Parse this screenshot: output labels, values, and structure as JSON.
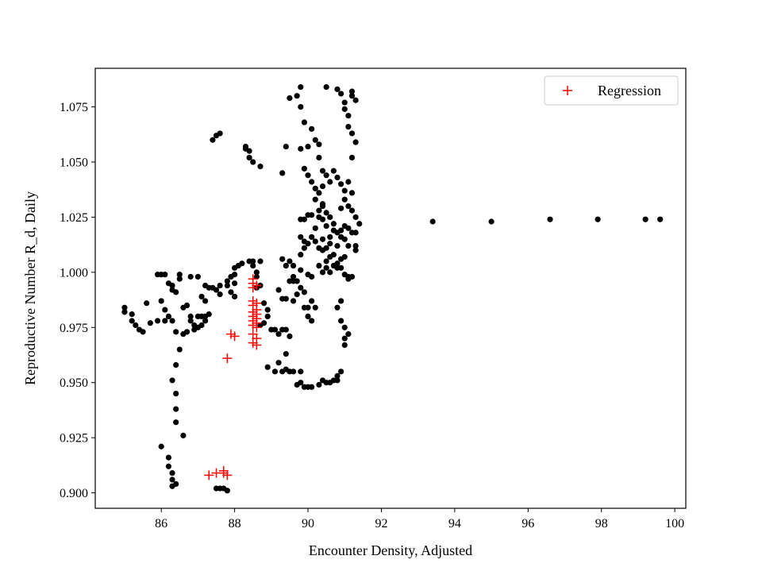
{
  "chart_data": {
    "type": "scatter",
    "title": "",
    "xlabel": "Encounter Density, Adjusted",
    "ylabel": "Reproductive Number R_d, Daily",
    "xlim": [
      84.2,
      100.3
    ],
    "ylim": [
      0.893,
      1.0925
    ],
    "xticks": [
      86,
      88,
      90,
      92,
      94,
      96,
      98,
      100
    ],
    "xtick_labels": [
      "86",
      "88",
      "90",
      "92",
      "94",
      "96",
      "98",
      "100"
    ],
    "yticks": [
      0.9,
      0.925,
      0.95,
      0.975,
      1.0,
      1.025,
      1.05,
      1.075
    ],
    "ytick_labels": [
      "0.900",
      "0.925",
      "0.950",
      "0.975",
      "1.000",
      "1.025",
      "1.050",
      "1.075"
    ],
    "grid": false,
    "legend": {
      "position": "top-right",
      "entries": [
        "Regression"
      ]
    },
    "series": [
      {
        "marker": "dot",
        "color": "#000000",
        "points": [
          [
            85.0,
            0.984
          ],
          [
            85.0,
            0.982
          ],
          [
            85.2,
            0.981
          ],
          [
            85.2,
            0.978
          ],
          [
            85.3,
            0.976
          ],
          [
            85.4,
            0.974
          ],
          [
            85.5,
            0.973
          ],
          [
            85.6,
            0.986
          ],
          [
            85.7,
            0.977
          ],
          [
            85.9,
            0.978
          ],
          [
            86.0,
            0.999
          ],
          [
            86.1,
            0.999
          ],
          [
            85.9,
            0.999
          ],
          [
            86.0,
            0.987
          ],
          [
            86.1,
            0.983
          ],
          [
            86.2,
            0.98
          ],
          [
            86.1,
            0.978
          ],
          [
            86.3,
            0.978
          ],
          [
            86.2,
            0.995
          ],
          [
            86.3,
            0.994
          ],
          [
            86.3,
            0.992
          ],
          [
            86.4,
            0.991
          ],
          [
            86.5,
            0.997
          ],
          [
            86.5,
            0.999
          ],
          [
            86.4,
            0.973
          ],
          [
            86.5,
            0.965
          ],
          [
            86.4,
            0.958
          ],
          [
            86.3,
            0.951
          ],
          [
            86.4,
            0.945
          ],
          [
            86.4,
            0.938
          ],
          [
            86.4,
            0.932
          ],
          [
            86.6,
            0.926
          ],
          [
            86.0,
            0.921
          ],
          [
            86.2,
            0.916
          ],
          [
            86.2,
            0.912
          ],
          [
            86.3,
            0.909
          ],
          [
            86.3,
            0.906
          ],
          [
            86.4,
            0.904
          ],
          [
            86.3,
            0.903
          ],
          [
            86.6,
            0.972
          ],
          [
            86.7,
            0.973
          ],
          [
            86.6,
            0.984
          ],
          [
            86.7,
            0.985
          ],
          [
            86.8,
            0.98
          ],
          [
            86.8,
            0.978
          ],
          [
            86.9,
            0.976
          ],
          [
            86.9,
            0.974
          ],
          [
            87.0,
            0.975
          ],
          [
            87.0,
            0.98
          ],
          [
            87.1,
            0.98
          ],
          [
            87.2,
            0.978
          ],
          [
            87.1,
            0.976
          ],
          [
            87.2,
            0.98
          ],
          [
            87.3,
            0.981
          ],
          [
            87.2,
            0.987
          ],
          [
            87.1,
            0.989
          ],
          [
            87.0,
            0.998
          ],
          [
            86.8,
            0.998
          ],
          [
            87.2,
            0.994
          ],
          [
            87.3,
            0.993
          ],
          [
            87.4,
            0.993
          ],
          [
            87.5,
            0.992
          ],
          [
            87.6,
            0.994
          ],
          [
            87.6,
            0.99
          ],
          [
            87.8,
            0.994
          ],
          [
            87.8,
            0.996
          ],
          [
            87.9,
            0.998
          ],
          [
            88.0,
            0.999
          ],
          [
            88.0,
            0.995
          ],
          [
            87.9,
            0.991
          ],
          [
            88.0,
            0.989
          ],
          [
            88.0,
            1.002
          ],
          [
            88.1,
            1.003
          ],
          [
            88.2,
            1.004
          ],
          [
            88.4,
            1.005
          ],
          [
            88.5,
            1.005
          ],
          [
            88.5,
            1.003
          ],
          [
            88.7,
            1.005
          ],
          [
            88.6,
            1.0
          ],
          [
            88.6,
            0.998
          ],
          [
            88.7,
            0.994
          ],
          [
            88.8,
            0.986
          ],
          [
            88.6,
            0.993
          ],
          [
            88.7,
            0.976
          ],
          [
            88.8,
            0.977
          ],
          [
            88.9,
            0.98
          ],
          [
            88.9,
            0.983
          ],
          [
            89.0,
            0.974
          ],
          [
            89.1,
            0.974
          ],
          [
            89.2,
            0.972
          ],
          [
            89.3,
            0.974
          ],
          [
            89.4,
            0.974
          ],
          [
            89.5,
            0.971
          ],
          [
            89.4,
            0.963
          ],
          [
            89.2,
            0.959
          ],
          [
            88.9,
            0.957
          ],
          [
            89.1,
            0.955
          ],
          [
            89.3,
            0.955
          ],
          [
            89.4,
            0.956
          ],
          [
            89.5,
            0.955
          ],
          [
            89.6,
            0.955
          ],
          [
            89.8,
            0.955
          ],
          [
            89.7,
            0.949
          ],
          [
            89.8,
            0.95
          ],
          [
            89.9,
            0.948
          ],
          [
            90.0,
            0.948
          ],
          [
            90.1,
            0.948
          ],
          [
            90.3,
            0.949
          ],
          [
            90.4,
            0.951
          ],
          [
            90.5,
            0.95
          ],
          [
            90.6,
            0.95
          ],
          [
            90.7,
            0.951
          ],
          [
            90.8,
            0.951
          ],
          [
            90.8,
            0.953
          ],
          [
            90.9,
            0.955
          ],
          [
            91.0,
            0.967
          ],
          [
            91.0,
            0.97
          ],
          [
            91.1,
            0.972
          ],
          [
            91.0,
            0.975
          ],
          [
            90.9,
            0.978
          ],
          [
            90.8,
            0.984
          ],
          [
            90.9,
            0.987
          ],
          [
            91.1,
            0.997
          ],
          [
            91.2,
            0.998
          ],
          [
            91.3,
            1.01
          ],
          [
            91.3,
            1.012
          ],
          [
            91.3,
            1.018
          ],
          [
            91.4,
            1.022
          ],
          [
            91.3,
            1.025
          ],
          [
            91.2,
            1.028
          ],
          [
            91.1,
            1.03
          ],
          [
            91.2,
            1.036
          ],
          [
            91.1,
            1.041
          ],
          [
            91.2,
            1.052
          ],
          [
            91.3,
            1.059
          ],
          [
            91.2,
            1.063
          ],
          [
            91.1,
            1.066
          ],
          [
            91.1,
            1.071
          ],
          [
            91.0,
            1.074
          ],
          [
            91.0,
            1.077
          ],
          [
            91.2,
            1.08
          ],
          [
            91.3,
            1.078
          ],
          [
            91.2,
            1.082
          ],
          [
            90.9,
            1.081
          ],
          [
            90.8,
            1.083
          ],
          [
            90.5,
            1.084
          ],
          [
            89.8,
            1.084
          ],
          [
            89.7,
            1.08
          ],
          [
            89.5,
            1.079
          ],
          [
            89.8,
            1.075
          ],
          [
            89.9,
            1.068
          ],
          [
            90.1,
            1.065
          ],
          [
            90.2,
            1.06
          ],
          [
            90.3,
            1.052
          ],
          [
            90.4,
            1.046
          ],
          [
            90.5,
            1.044
          ],
          [
            90.6,
            1.041
          ],
          [
            90.4,
            1.039
          ],
          [
            90.3,
            1.036
          ],
          [
            90.2,
            1.033
          ],
          [
            90.4,
            1.03
          ],
          [
            90.5,
            1.027
          ],
          [
            90.6,
            1.025
          ],
          [
            90.7,
            1.022
          ],
          [
            90.8,
            1.018
          ],
          [
            90.9,
            1.016
          ],
          [
            90.8,
            1.012
          ],
          [
            90.7,
            1.008
          ],
          [
            90.8,
            1.004
          ],
          [
            90.9,
            1.002
          ],
          [
            91.0,
            0.999
          ],
          [
            91.1,
            0.998
          ],
          [
            90.6,
            1.0
          ],
          [
            90.5,
            1.002
          ],
          [
            90.3,
            1.003
          ],
          [
            90.1,
            0.998
          ],
          [
            90.0,
            0.999
          ],
          [
            89.8,
            1.001
          ],
          [
            89.6,
            1.003
          ],
          [
            89.5,
            1.005
          ],
          [
            89.6,
            0.998
          ],
          [
            89.7,
            0.996
          ],
          [
            89.8,
            0.993
          ],
          [
            89.9,
            0.991
          ],
          [
            89.5,
            0.996
          ],
          [
            89.6,
            0.996
          ],
          [
            89.7,
            0.99
          ],
          [
            89.6,
            0.987
          ],
          [
            89.2,
            0.992
          ],
          [
            89.3,
            0.988
          ],
          [
            89.4,
            0.988
          ],
          [
            89.9,
            0.984
          ],
          [
            90.0,
            0.984
          ],
          [
            90.0,
            0.98
          ],
          [
            90.1,
            0.978
          ],
          [
            90.2,
            0.984
          ],
          [
            90.1,
            0.987
          ],
          [
            89.3,
            1.006
          ],
          [
            89.4,
            1.003
          ],
          [
            89.8,
            1.008
          ],
          [
            89.9,
            1.011
          ],
          [
            90.0,
            1.013
          ],
          [
            90.1,
            1.016
          ],
          [
            90.2,
            1.02
          ],
          [
            89.8,
            1.024
          ],
          [
            89.9,
            1.024
          ],
          [
            90.0,
            1.026
          ],
          [
            90.1,
            1.026
          ],
          [
            90.3,
            1.028
          ],
          [
            90.4,
            1.031
          ],
          [
            90.2,
            1.038
          ],
          [
            90.1,
            1.041
          ],
          [
            90.0,
            1.044
          ],
          [
            89.9,
            1.047
          ],
          [
            89.8,
            1.056
          ],
          [
            90.0,
            1.057
          ],
          [
            90.3,
            1.058
          ],
          [
            90.7,
            1.046
          ],
          [
            90.8,
            1.043
          ],
          [
            90.9,
            1.04
          ],
          [
            91.0,
            1.037
          ],
          [
            91.0,
            1.033
          ],
          [
            90.9,
            1.029
          ],
          [
            91.0,
            1.021
          ],
          [
            90.9,
            1.019
          ],
          [
            91.1,
            1.02
          ],
          [
            91.2,
            1.018
          ],
          [
            91.0,
            1.015
          ],
          [
            91.1,
            1.012
          ],
          [
            90.6,
            1.013
          ],
          [
            90.5,
            1.011
          ],
          [
            90.4,
            1.01
          ],
          [
            90.3,
            1.011
          ],
          [
            90.2,
            1.014
          ],
          [
            90.4,
            1.015
          ],
          [
            90.6,
            1.016
          ],
          [
            90.7,
            1.019
          ],
          [
            90.5,
            1.021
          ],
          [
            90.4,
            1.024
          ],
          [
            90.3,
            1.025
          ],
          [
            89.9,
            1.014
          ],
          [
            89.8,
            1.016
          ],
          [
            90.5,
            1.005
          ],
          [
            90.6,
            1.007
          ],
          [
            90.7,
            1.003
          ],
          [
            90.9,
            1.006
          ],
          [
            91.0,
            1.007
          ],
          [
            90.8,
            1.002
          ],
          [
            90.4,
            1.0
          ],
          [
            89.4,
            1.057
          ],
          [
            89.3,
            1.045
          ],
          [
            87.6,
            1.063
          ],
          [
            87.5,
            1.062
          ],
          [
            87.4,
            1.06
          ],
          [
            88.3,
            1.057
          ],
          [
            88.3,
            1.056
          ],
          [
            88.4,
            1.055
          ],
          [
            88.4,
            1.052
          ],
          [
            88.5,
            1.05
          ],
          [
            88.7,
            1.048
          ],
          [
            93.4,
            1.023
          ],
          [
            95.0,
            1.023
          ],
          [
            96.6,
            1.024
          ],
          [
            97.9,
            1.024
          ],
          [
            99.2,
            1.024
          ],
          [
            99.6,
            1.024
          ],
          [
            87.6,
            0.902
          ],
          [
            87.7,
            0.902
          ],
          [
            87.8,
            0.901
          ],
          [
            87.5,
            0.902
          ]
        ]
      },
      {
        "name": "Regression",
        "marker": "plus",
        "color": "#ff0000",
        "points": [
          [
            88.5,
            0.997
          ],
          [
            88.5,
            0.995
          ],
          [
            88.6,
            0.994
          ],
          [
            88.5,
            0.993
          ],
          [
            88.5,
            0.987
          ],
          [
            88.6,
            0.986
          ],
          [
            88.5,
            0.985
          ],
          [
            88.6,
            0.983
          ],
          [
            88.5,
            0.982
          ],
          [
            88.6,
            0.981
          ],
          [
            88.5,
            0.98
          ],
          [
            88.6,
            0.979
          ],
          [
            88.5,
            0.978
          ],
          [
            88.6,
            0.977
          ],
          [
            88.5,
            0.976
          ],
          [
            88.6,
            0.975
          ],
          [
            88.5,
            0.972
          ],
          [
            88.6,
            0.97
          ],
          [
            88.5,
            0.968
          ],
          [
            88.6,
            0.967
          ],
          [
            87.9,
            0.972
          ],
          [
            88.0,
            0.971
          ],
          [
            87.8,
            0.961
          ],
          [
            87.3,
            0.908
          ],
          [
            87.5,
            0.909
          ],
          [
            87.7,
            0.91
          ],
          [
            87.7,
            0.909
          ],
          [
            87.8,
            0.908
          ]
        ]
      }
    ]
  }
}
